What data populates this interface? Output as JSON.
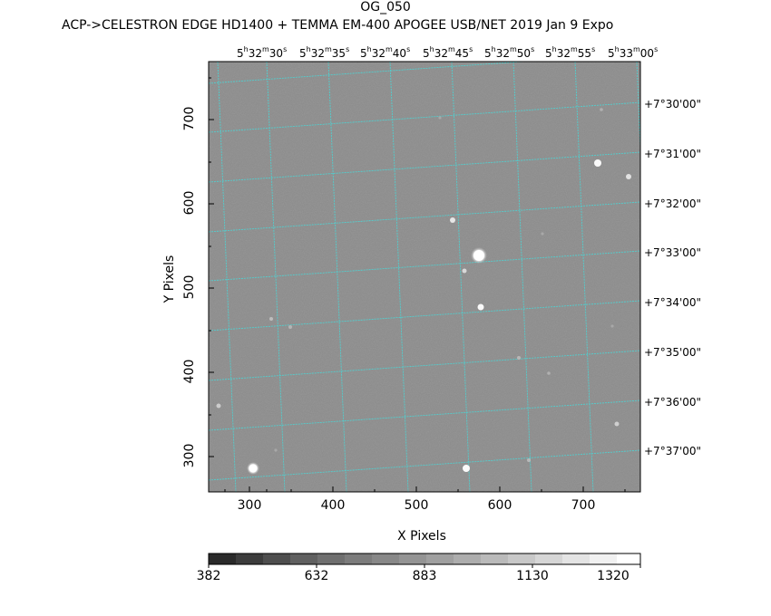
{
  "header": {
    "title": "OG_050",
    "subtitle": "ACP->CELESTRON EDGE HD1400 + TEMMA EM-400 APOGEE USB/NET   2019 Jan  9    Expo"
  },
  "axes": {
    "xlabel": "X Pixels",
    "ylabel": "Y Pixels",
    "x_ticks": [
      "300",
      "400",
      "500",
      "600",
      "700"
    ],
    "y_ticks": [
      "300",
      "400",
      "500",
      "600",
      "700"
    ]
  },
  "ra_labels": [
    {
      "h": "5",
      "m": "32",
      "s": "30"
    },
    {
      "h": "5",
      "m": "32",
      "s": "35"
    },
    {
      "h": "5",
      "m": "32",
      "s": "40"
    },
    {
      "h": "5",
      "m": "32",
      "s": "45"
    },
    {
      "h": "5",
      "m": "32",
      "s": "50"
    },
    {
      "h": "5",
      "m": "32",
      "s": "55"
    },
    {
      "h": "5",
      "m": "33",
      "s": "00"
    }
  ],
  "dec_labels": [
    "+7°30'00\"",
    "+7°31'00\"",
    "+7°32'00\"",
    "+7°33'00\"",
    "+7°34'00\"",
    "+7°35'00\"",
    "+7°36'00\"",
    "+7°37'00\""
  ],
  "colorbar": {
    "labels": [
      "382",
      "632",
      "883",
      "1130",
      "1320"
    ]
  },
  "colors": {
    "image_gray": "#8c8c8c",
    "grid": "#48d8d8"
  }
}
